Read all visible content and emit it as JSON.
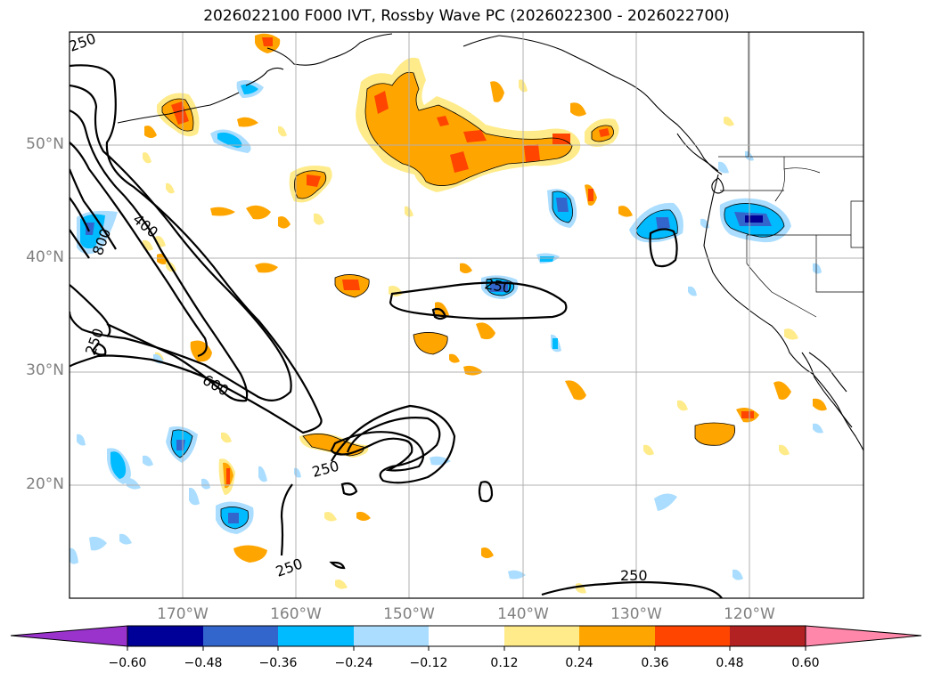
{
  "title": "2026022100 F000 IVT, Rossby Wave PC (2026022300 - 2026022700)",
  "lat_labels": [
    "50°N",
    "40°N",
    "30°N",
    "20°N"
  ],
  "lon_labels": [
    "170°W",
    "160°W",
    "150°W",
    "140°W",
    "130°W",
    "120°W"
  ],
  "contour_labels": [
    "250",
    "400",
    "800",
    "250",
    "600",
    "250",
    "250",
    "250",
    "250"
  ],
  "colorbar": {
    "colors": [
      "#9933cc",
      "#000099",
      "#3366cc",
      "#00bbff",
      "#aaddff",
      "#ffffff",
      "#ffeb8a",
      "#ffa500",
      "#ff4500",
      "#b22222",
      "#ff88aa"
    ],
    "ticks": [
      "−0.60",
      "−0.48",
      "−0.36",
      "−0.24",
      "−0.12",
      "0.12",
      "0.24",
      "0.36",
      "0.48",
      "0.60"
    ]
  },
  "colors": {
    "frame": "#000000",
    "grid": "#b0b0b0",
    "tick_text": "#808080"
  }
}
